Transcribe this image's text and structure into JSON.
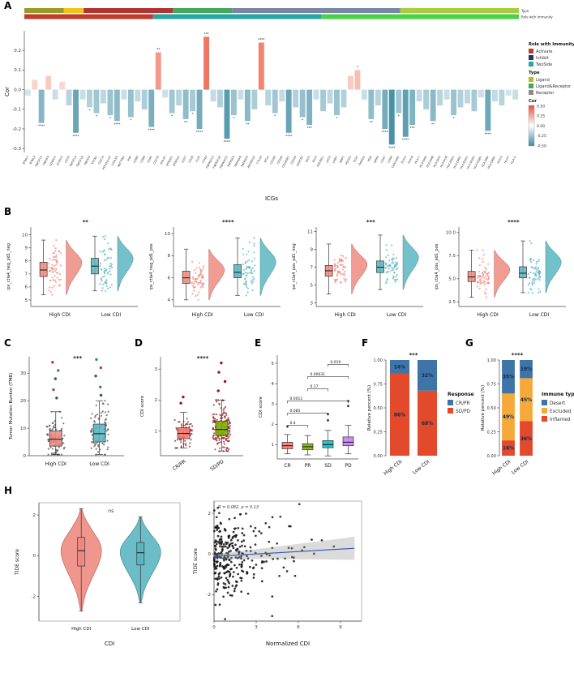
{
  "figure": {
    "panel_labels": [
      "A",
      "B",
      "C",
      "D",
      "E",
      "F",
      "G",
      "H"
    ],
    "background": "#ffffff"
  },
  "chart_data": [
    {
      "panel": "A",
      "type": "bar",
      "xlabel": "ICGs",
      "ylabel": "Cor",
      "ylim": [
        -0.32,
        0.3
      ],
      "yticks": [
        "0.2",
        "0.1",
        "0.0",
        "-0.1",
        "-0.2",
        "-0.3"
      ],
      "bar_colors": {
        "positive": "#EE6A52",
        "negative": "#3D8BA1"
      },
      "strips": {
        "type": {
          "label": "Type",
          "segments": [
            {
              "color": "#9a9a27",
              "frac": 0.08
            },
            {
              "color": "#f0c419",
              "frac": 0.04
            },
            {
              "color": "#b23430",
              "frac": 0.18
            },
            {
              "color": "#44a85c",
              "frac": 0.12
            },
            {
              "color": "#7b86a7",
              "frac": 0.34
            },
            {
              "color": "#a9cb3f",
              "frac": 0.24
            }
          ]
        },
        "role": {
          "label": "Role with Immunity",
          "segments": [
            {
              "color": "#c03a2d",
              "frac": 0.26
            },
            {
              "color": "#2aa6a0",
              "frac": 0.34
            },
            {
              "color": "#4ecf4a",
              "frac": 0.4
            }
          ]
        }
      },
      "legends": {
        "role": {
          "title": "Role with Immunity",
          "items": [
            {
              "label": "Activate",
              "color": "#c03a2d"
            },
            {
              "label": "Inhibit",
              "color": "#1c3b5e"
            },
            {
              "label": "TwoSide",
              "color": "#2aa6a0"
            }
          ]
        },
        "type": {
          "title": "Type",
          "items": [
            {
              "label": "Ligand",
              "color": "#b5bd1c"
            },
            {
              "label": "Ligand&Receptor",
              "color": "#44a85c"
            },
            {
              "label": "Receptor",
              "color": "#8c8c8c"
            }
          ]
        },
        "cor": {
          "title": "Cor",
          "ticks": [
            "0.50",
            "0.25",
            "0.00",
            "-0.25",
            "-0.50"
          ],
          "top": "#E8503A",
          "mid": "#FFFFFF",
          "bottom": "#3D8BA1"
        }
      },
      "genes": [
        "BTNL2",
        "BTNL9",
        "TNFSF15",
        "TNFSF9",
        "CD40LG",
        "ICOSLG",
        "CD70",
        "TNFSF14",
        "TNFSF18",
        "TNFSF4",
        "VTCN1",
        "CD274",
        "PDCD1LG2",
        "LGALS9",
        "NECTIN2",
        "PVR",
        "CD80",
        "CD86",
        "CD40",
        "CD276",
        "HHLA2",
        "BTN3A1",
        "BTN3A2",
        "CD27",
        "CD28",
        "ICOS",
        "CD44",
        "TNFRSF14",
        "TNFRSF18",
        "TNFRSF25",
        "TNFRSF4",
        "TNFRSF8",
        "TNFRSF9",
        "ADORA2A",
        "CTLA4",
        "BTLA",
        "CD160",
        "CD200",
        "CD200R1",
        "CD244",
        "HAVCR2",
        "IDO1",
        "IDO2",
        "KIR3DL1",
        "LAG3",
        "LAIR1",
        "NRP1",
        "PDCD1",
        "TIGIT",
        "TMIGD2",
        "VSIR",
        "SIRPA",
        "CD47",
        "CD96",
        "CEACAM1",
        "HLA-A",
        "HLA-B",
        "HLA-C",
        "HLA-DMA",
        "HLA-DMB",
        "HLA-DOA",
        "HLA-DOB",
        "HLA-DPA1",
        "HLA-DPB1",
        "HLA-DQA1",
        "HLA-DQA2",
        "HLA-DQB1",
        "HLA-DRA",
        "HLA-DRB1",
        "HLA-E",
        "HLA-F",
        "HLA-G"
      ],
      "cor": [
        -0.03,
        0.05,
        -0.17,
        0.07,
        -0.05,
        0.04,
        -0.08,
        -0.22,
        -0.05,
        -0.09,
        -0.12,
        -0.07,
        -0.13,
        -0.16,
        -0.05,
        -0.14,
        -0.06,
        -0.1,
        -0.19,
        0.19,
        -0.04,
        -0.12,
        -0.08,
        -0.15,
        -0.11,
        -0.2,
        0.27,
        -0.06,
        -0.09,
        -0.25,
        -0.13,
        -0.05,
        -0.16,
        -0.1,
        0.24,
        -0.08,
        -0.12,
        -0.06,
        -0.22,
        -0.09,
        -0.14,
        -0.18,
        -0.05,
        -0.11,
        -0.07,
        -0.13,
        -0.09,
        0.07,
        0.1,
        -0.05,
        -0.15,
        -0.08,
        -0.2,
        -0.28,
        -0.12,
        -0.24,
        -0.18,
        -0.06,
        -0.1,
        -0.16,
        -0.08,
        -0.05,
        -0.13,
        -0.09,
        -0.07,
        -0.11,
        -0.04,
        -0.21,
        -0.06,
        -0.08,
        -0.03,
        -0.05
      ],
      "sig": [
        "",
        "",
        "****",
        "",
        "",
        "",
        "",
        "****",
        "",
        "*",
        "*",
        "",
        "*",
        "****",
        "",
        "*",
        "",
        "",
        "****",
        "**",
        "",
        "*",
        "",
        "**",
        "*",
        "****",
        "***",
        "",
        "",
        "****",
        "*",
        "",
        "**",
        "",
        "****",
        "",
        "*",
        "",
        "****",
        "",
        "*",
        "***",
        "",
        "",
        "",
        "*",
        "",
        "",
        "*",
        "",
        "**",
        "",
        "****",
        "****",
        "*",
        "****",
        "***",
        "",
        "",
        "**",
        "",
        "",
        "*",
        "",
        "",
        "",
        "",
        "****",
        "",
        "",
        "",
        ""
      ]
    },
    {
      "panel": "B",
      "type": "raincloud",
      "categories": [
        "High CDI",
        "Low CDI"
      ],
      "subplots": [
        {
          "ylabel": "ips_ctla4_neg_pd1_neg",
          "ylim": [
            4.5,
            10.6
          ],
          "yticks": [
            "5",
            "6",
            "7",
            "8",
            "9",
            "10"
          ],
          "sig": "**",
          "groups": [
            {
              "label": "High CDI",
              "color": "#EF8B80",
              "stats": {
                "lo": 5.4,
                "q1": 6.8,
                "med": 7.3,
                "q3": 7.9,
                "hi": 9.6
              }
            },
            {
              "label": "Low CDI",
              "color": "#5BB6C2",
              "stats": {
                "lo": 5.7,
                "q1": 7.0,
                "med": 7.6,
                "q3": 8.2,
                "hi": 9.9
              }
            }
          ]
        },
        {
          "ylabel": "ips_ctla4_neg_pd1_pos",
          "ylim": [
            3.4,
            10.6
          ],
          "yticks": [
            "4",
            "6",
            "8",
            "10"
          ],
          "sig": "****",
          "groups": [
            {
              "label": "High CDI",
              "color": "#EF8B80",
              "stats": {
                "lo": 4.0,
                "q1": 5.5,
                "med": 6.0,
                "q3": 6.6,
                "hi": 8.6
              }
            },
            {
              "label": "Low CDI",
              "color": "#5BB6C2",
              "stats": {
                "lo": 4.4,
                "q1": 6.0,
                "med": 6.5,
                "q3": 7.2,
                "hi": 9.6
              }
            }
          ]
        },
        {
          "ylabel": "ips_ctla4_pos_pd1_neg",
          "ylim": [
            2.6,
            11.5
          ],
          "yticks": [
            "3",
            "5",
            "7",
            "9",
            "11"
          ],
          "sig": "***",
          "groups": [
            {
              "label": "High CDI",
              "color": "#EF8B80",
              "stats": {
                "lo": 4.0,
                "q1": 6.0,
                "med": 6.6,
                "q3": 7.2,
                "hi": 9.6
              }
            },
            {
              "label": "Low CDI",
              "color": "#5BB6C2",
              "stats": {
                "lo": 4.5,
                "q1": 6.4,
                "med": 7.0,
                "q3": 7.7,
                "hi": 10.6
              }
            }
          ]
        },
        {
          "ylabel": "ips_ctla4_pos_pd1_pos",
          "ylim": [
            2.0,
            10.6
          ],
          "yticks": [
            "2.5",
            "5.0",
            "7.5",
            "10.0"
          ],
          "sig": "****",
          "groups": [
            {
              "label": "High CDI",
              "color": "#EF8B80",
              "stats": {
                "lo": 3.0,
                "q1": 4.7,
                "med": 5.2,
                "q3": 5.8,
                "hi": 8.1
              }
            },
            {
              "label": "Low CDI",
              "color": "#5BB6C2",
              "stats": {
                "lo": 3.5,
                "q1": 5.1,
                "med": 5.6,
                "q3": 6.3,
                "hi": 9.1
              }
            }
          ]
        }
      ]
    },
    {
      "panel": "C",
      "type": "box-jitter",
      "ylabel": "Tumor Mutation Burden (TMB)",
      "ylim": [
        0,
        36
      ],
      "yticks": [
        "0",
        "10",
        "20",
        "30"
      ],
      "sig": "***",
      "groups": [
        {
          "label": "High CDI",
          "color": "#EF8B80",
          "jitter_n": 90,
          "jitter_color": "#4d4d4d",
          "stats": {
            "lo": 0.4,
            "q1": 3.5,
            "med": 6.0,
            "q3": 9.0,
            "hi": 16.0
          },
          "outliers": [
            {
              "v": 21,
              "color": "#4d4d4d"
            },
            {
              "v": 24,
              "color": "#c0392b"
            },
            {
              "v": 28,
              "color": "#4d4d4d"
            },
            {
              "v": 31,
              "color": "#2e8b57"
            },
            {
              "v": 34,
              "color": "#c0392b"
            }
          ]
        },
        {
          "label": "Low CDI",
          "color": "#5BB6C2",
          "jitter_n": 90,
          "jitter_color": "#4d4d4d",
          "stats": {
            "lo": 0.4,
            "q1": 5.0,
            "med": 8.0,
            "q3": 11.5,
            "hi": 20.0
          },
          "outliers": [
            {
              "v": 22,
              "color": "#4d4d4d"
            },
            {
              "v": 25,
              "color": "#2e8b57"
            },
            {
              "v": 29,
              "color": "#4d4d4d"
            },
            {
              "v": 32,
              "color": "#c0392b"
            },
            {
              "v": 35,
              "color": "#2e8b57"
            }
          ]
        }
      ]
    },
    {
      "panel": "D",
      "type": "box-jitter",
      "ylabel": "CDI score",
      "ylim": [
        0.2,
        3.4
      ],
      "yticks": [
        "1",
        "2",
        "3"
      ],
      "sig": "****",
      "x_rotate": true,
      "groups": [
        {
          "label": "CR/PR",
          "color": "#F8766D",
          "jitter_n": 70,
          "jitter_color": "#8f1d1d",
          "stats": {
            "lo": 0.45,
            "q1": 0.75,
            "med": 0.92,
            "q3": 1.1,
            "hi": 1.6
          },
          "outliers": [
            {
              "v": 1.9,
              "color": "#8f1d1d"
            },
            {
              "v": 2.1,
              "color": "#8f1d1d"
            }
          ]
        },
        {
          "label": "SD/PD",
          "color": "#7CAE00",
          "jitter_n": 160,
          "jitter_color": "#8f1d1d",
          "stats": {
            "lo": 0.35,
            "q1": 0.85,
            "med": 1.05,
            "q3": 1.32,
            "hi": 2.0
          },
          "outliers": [
            {
              "v": 2.3,
              "color": "#8f1d1d"
            },
            {
              "v": 2.6,
              "color": "#8f1d1d"
            },
            {
              "v": 2.9,
              "color": "#8f1d1d"
            },
            {
              "v": 3.2,
              "color": "#8f1d1d"
            }
          ]
        }
      ]
    },
    {
      "panel": "E",
      "type": "box",
      "ylabel": "CDI score",
      "ylim": [
        0.3,
        5.4
      ],
      "yticks": [
        "1",
        "2",
        "3",
        "4",
        "5"
      ],
      "groups": [
        {
          "label": "CR",
          "color": "#F8766D",
          "stats": {
            "lo": 0.55,
            "q1": 0.8,
            "med": 0.95,
            "q3": 1.12,
            "hi": 1.5
          },
          "outliers": [
            {
              "v": 1.9,
              "color": "#333333"
            }
          ]
        },
        {
          "label": "PR",
          "color": "#7CAE00",
          "stats": {
            "lo": 0.5,
            "q1": 0.75,
            "med": 0.9,
            "q3": 1.05,
            "hi": 1.45
          },
          "outliers": []
        },
        {
          "label": "SD",
          "color": "#00BFC4",
          "stats": {
            "lo": 0.45,
            "q1": 0.85,
            "med": 1.0,
            "q3": 1.2,
            "hi": 1.7
          },
          "outliers": [
            {
              "v": 2.2,
              "color": "#333333"
            },
            {
              "v": 2.5,
              "color": "#333333"
            }
          ]
        },
        {
          "label": "PD",
          "color": "#C77CFF",
          "stats": {
            "lo": 0.55,
            "q1": 0.95,
            "med": 1.12,
            "q3": 1.38,
            "hi": 1.95
          },
          "outliers": [
            {
              "v": 2.9,
              "color": "#333333"
            },
            {
              "v": 3.15,
              "color": "#333333"
            }
          ]
        }
      ],
      "comparisons": [
        {
          "a": 0,
          "b": 1,
          "label": "0.4",
          "y": 1.95
        },
        {
          "a": 0,
          "b": 2,
          "label": "0.085",
          "y": 2.55
        },
        {
          "a": 0,
          "b": 3,
          "label": "0.0011",
          "y": 3.15
        },
        {
          "a": 1,
          "b": 2,
          "label": "0.17",
          "y": 3.75
        },
        {
          "a": 1,
          "b": 3,
          "label": "0.00031",
          "y": 4.35
        },
        {
          "a": 2,
          "b": 3,
          "label": "0.019",
          "y": 4.95
        }
      ]
    },
    {
      "panel": "F",
      "type": "stacked-bar",
      "ylabel": "Relative percent (%)",
      "yticks": [
        "0.00",
        "0.25",
        "0.50",
        "0.75",
        "1.00"
      ],
      "sig": "***",
      "legend_title": "Response",
      "categories": [
        "High CDI",
        "Low CDI"
      ],
      "series": [
        {
          "name": "CR/PR",
          "color": "#3E74A6",
          "values": [
            0.14,
            0.32
          ],
          "labels": [
            "14%",
            "32%"
          ]
        },
        {
          "name": "SD/PD",
          "color": "#E3492B",
          "values": [
            0.86,
            0.68
          ],
          "labels": [
            "86%",
            "68%"
          ]
        }
      ]
    },
    {
      "panel": "G",
      "type": "stacked-bar",
      "ylabel": "Relative percent (%)",
      "yticks": [
        "0.00",
        "0.25",
        "0.50",
        "0.75",
        "1.00"
      ],
      "sig": "****",
      "legend_title": "Immune type",
      "categories": [
        "High CDI",
        "Low CDI"
      ],
      "series": [
        {
          "name": "Desert",
          "color": "#3E74A6",
          "values": [
            0.35,
            0.19
          ],
          "labels": [
            "35%",
            "19%"
          ]
        },
        {
          "name": "Excluded",
          "color": "#F5A93B",
          "values": [
            0.49,
            0.45
          ],
          "labels": [
            "49%",
            "45%"
          ]
        },
        {
          "name": "Inflamed",
          "color": "#E3492B",
          "values": [
            0.16,
            0.36
          ],
          "labels": [
            "16%",
            "36%"
          ]
        }
      ]
    },
    {
      "panel": "H1",
      "type": "violin",
      "ylabel": "TIDE score",
      "xlabel": "CDI",
      "ylim": [
        -3.2,
        2.6
      ],
      "yticks": [
        "-2",
        "0",
        "2"
      ],
      "sig": "ns",
      "groups": [
        {
          "label": "High CDI",
          "color": "#EF8B80",
          "stats": {
            "lo": -2.7,
            "q1": -0.5,
            "med": 0.25,
            "q3": 0.9,
            "hi": 2.3
          }
        },
        {
          "label": "Low CDI",
          "color": "#5BB6C2",
          "stats": {
            "lo": -2.3,
            "q1": -0.45,
            "med": 0.15,
            "q3": 0.65,
            "hi": 1.9
          }
        }
      ]
    },
    {
      "panel": "H2",
      "type": "scatter",
      "ylabel": "TIDE score",
      "xlabel": "Normalized CDI",
      "annotation": "R = 0.082, p = 0.13",
      "xlim": [
        0,
        10.5
      ],
      "ylim": [
        -3.3,
        2.6
      ],
      "xticks": [
        "0",
        "3",
        "6",
        "9"
      ],
      "yticks": [
        "-2",
        "0",
        "2"
      ],
      "n_points": 300,
      "point_color": "#111111",
      "regression": {
        "x1": 0,
        "y1": -0.12,
        "x2": 10,
        "y2": 0.28,
        "line_color": "#3355aa",
        "band_color": "#999999"
      }
    }
  ]
}
